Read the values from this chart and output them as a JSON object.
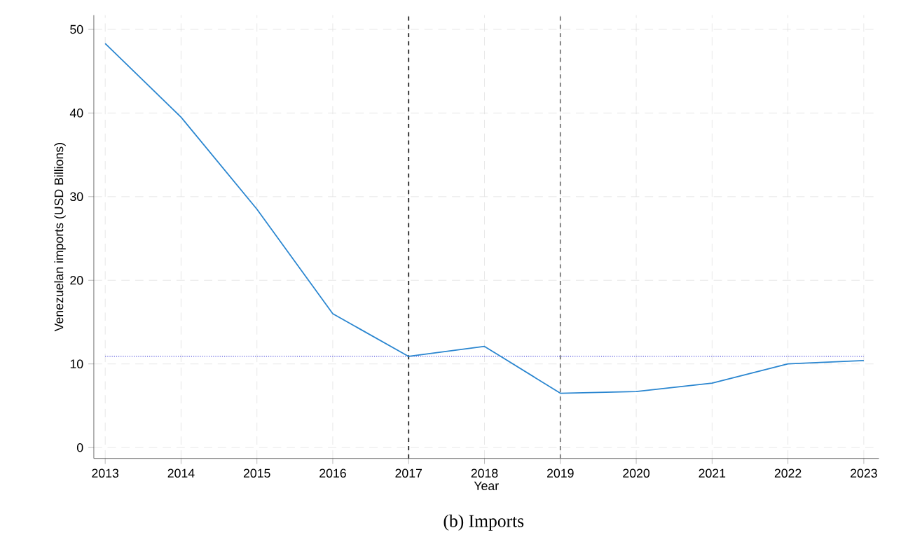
{
  "chart_data": {
    "type": "line",
    "xlabel": "Year",
    "ylabel": "Venezuelan imports (USD Billions)",
    "x": [
      2013,
      2014,
      2015,
      2016,
      2017,
      2018,
      2019,
      2020,
      2021,
      2022,
      2023
    ],
    "series": [
      {
        "color": "#2a86d0",
        "values": [
          48.3,
          39.5,
          28.5,
          16.0,
          10.9,
          12.1,
          6.5,
          6.7,
          7.7,
          10.0,
          10.4
        ]
      }
    ],
    "xlim": [
      2012.85,
      2023.2
    ],
    "ylim": [
      -1.3,
      51.7
    ],
    "xticks": [
      2013,
      2014,
      2015,
      2016,
      2017,
      2018,
      2019,
      2020,
      2021,
      2022,
      2023
    ],
    "yticks": [
      0,
      10,
      20,
      30,
      40,
      50
    ],
    "grid": true,
    "line_style": "solid",
    "marker": "none",
    "ref_lines": [
      {
        "axis": "x",
        "value": 2017,
        "color": "#222222",
        "line_style": "dashed"
      },
      {
        "axis": "x",
        "value": 2019,
        "color": "#777777",
        "line_style": "dashed"
      },
      {
        "axis": "y",
        "value": 10.9,
        "color": "#5555dd",
        "line_style": "dotted"
      }
    ],
    "annotations": [
      "(b) Imports"
    ]
  }
}
